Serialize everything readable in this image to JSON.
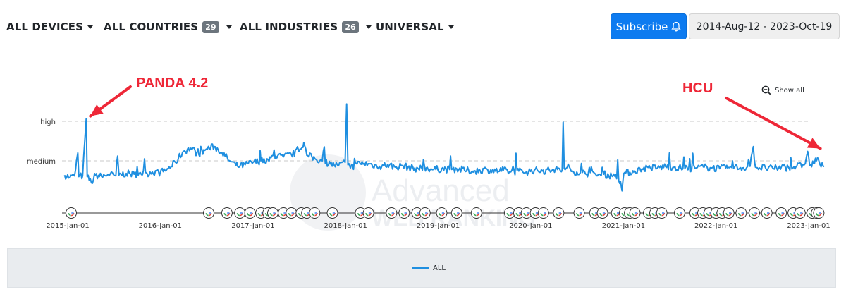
{
  "filters": [
    {
      "label": "ALL DEVICES",
      "badge": ""
    },
    {
      "label": "ALL COUNTRIES",
      "badge": "29"
    },
    {
      "label": "ALL INDUSTRIES",
      "badge": "26"
    },
    {
      "label": "UNIVERSAL",
      "badge": ""
    }
  ],
  "subscribe_label": "Subscribe",
  "date_range": "2014-Aug-12 - 2023-Oct-19",
  "show_all_label": "Show all",
  "watermark": [
    "Advanced",
    "WEB RANKING"
  ],
  "colors": {
    "series": "#1f8fe0",
    "annotation": "#ee2737",
    "subscribe_bg": "#0d7bf0"
  },
  "chart_data": {
    "type": "line",
    "title": "",
    "x_range": [
      "2014-Dec-15",
      "2023-Mar-01"
    ],
    "y_axis": {
      "tick_labels": [
        "high",
        "medium"
      ],
      "grid": "dashed"
    },
    "x_ticks": [
      "2015-Jan-01",
      "2016-Jan-01",
      "2017-Jan-01",
      "2018-Jan-01",
      "2019-Jan-01",
      "2020-Jan-01",
      "2021-Jan-01",
      "2022-Jan-01",
      "2023-Jan-01"
    ],
    "series": [
      {
        "name": "ALL",
        "color": "#1f8fe0",
        "points": [
          [
            "2014-Dec-20",
            0.32
          ],
          [
            "2015-Jan-10",
            0.29
          ],
          [
            "2015-Jan-28",
            0.31
          ],
          [
            "2015-Feb-10",
            0.6
          ],
          [
            "2015-Feb-14",
            0.3
          ],
          [
            "2015-Mar-01",
            0.31
          ],
          [
            "2015-Mar-15",
            1.03
          ],
          [
            "2015-Mar-19",
            0.3
          ],
          [
            "2015-Apr-05",
            0.22
          ],
          [
            "2015-Apr-20",
            0.32
          ],
          [
            "2015-May-15",
            0.3
          ],
          [
            "2015-Jun-10",
            0.33
          ],
          [
            "2015-Jul-10",
            0.31
          ],
          [
            "2015-Jul-17",
            0.56
          ],
          [
            "2015-Jul-22",
            0.32
          ],
          [
            "2015-Aug-20",
            0.34
          ],
          [
            "2015-Sep-20",
            0.33
          ],
          [
            "2015-Oct-15",
            0.35
          ],
          [
            "2015-Nov-10",
            0.34
          ],
          [
            "2015-Dec-01",
            0.36
          ],
          [
            "2016-Jan-01",
            0.35
          ],
          [
            "2016-Feb-01",
            0.4
          ],
          [
            "2016-Mar-01",
            0.48
          ],
          [
            "2016-Apr-01",
            0.62
          ],
          [
            "2016-May-01",
            0.66
          ],
          [
            "2016-Jun-01",
            0.58
          ],
          [
            "2016-Jul-01",
            0.65
          ],
          [
            "2016-Aug-01",
            0.68
          ],
          [
            "2016-Sep-01",
            0.6
          ],
          [
            "2016-Oct-01",
            0.5
          ],
          [
            "2016-Nov-01",
            0.43
          ],
          [
            "2016-Dec-01",
            0.45
          ],
          [
            "2017-Jan-01",
            0.48
          ],
          [
            "2017-Feb-01",
            0.5
          ],
          [
            "2017-Mar-01",
            0.52
          ],
          [
            "2017-Apr-01",
            0.56
          ],
          [
            "2017-May-01",
            0.55
          ],
          [
            "2017-Jun-01",
            0.58
          ],
          [
            "2017-Jul-01",
            0.62
          ],
          [
            "2017-Jul-20",
            0.73
          ],
          [
            "2017-Aug-01",
            0.57
          ],
          [
            "2017-Sep-01",
            0.53
          ],
          [
            "2017-Oct-01",
            0.5
          ],
          [
            "2017-Nov-01",
            0.46
          ],
          [
            "2017-Dec-01",
            0.44
          ],
          [
            "2017-Dec-30",
            0.48
          ],
          [
            "2018-Jan-05",
            1.22
          ],
          [
            "2018-Jan-10",
            0.45
          ],
          [
            "2018-Jan-20",
            0.41
          ],
          [
            "2018-Feb-15",
            0.46
          ],
          [
            "2018-Mar-15",
            0.47
          ],
          [
            "2018-Apr-15",
            0.45
          ],
          [
            "2018-May-15",
            0.43
          ],
          [
            "2018-Jun-15",
            0.45
          ],
          [
            "2018-Jul-15",
            0.42
          ],
          [
            "2018-Aug-15",
            0.44
          ],
          [
            "2018-Sep-15",
            0.41
          ],
          [
            "2018-Oct-15",
            0.4
          ],
          [
            "2018-Nov-15",
            0.41
          ],
          [
            "2018-Dec-15",
            0.39
          ],
          [
            "2019-Jan-15",
            0.4
          ],
          [
            "2019-Feb-15",
            0.39
          ],
          [
            "2019-Mar-15",
            0.4
          ],
          [
            "2019-Apr-15",
            0.38
          ],
          [
            "2019-May-15",
            0.37
          ],
          [
            "2019-Jun-15",
            0.38
          ],
          [
            "2019-Jul-15",
            0.39
          ],
          [
            "2019-Aug-15",
            0.37
          ],
          [
            "2019-Sep-15",
            0.38
          ],
          [
            "2019-Oct-15",
            0.36
          ],
          [
            "2019-Nov-15",
            0.37
          ],
          [
            "2019-Dec-15",
            0.36
          ],
          [
            "2020-Jan-15",
            0.38
          ],
          [
            "2020-Feb-15",
            0.37
          ],
          [
            "2020-Mar-15",
            0.38
          ],
          [
            "2020-Apr-15",
            0.39
          ],
          [
            "2020-May-04",
            0.38
          ],
          [
            "2020-May-08",
            0.99
          ],
          [
            "2020-May-12",
            0.4
          ],
          [
            "2020-Jun-15",
            0.37
          ],
          [
            "2020-Jul-15",
            0.35
          ],
          [
            "2020-Aug-15",
            0.34
          ],
          [
            "2020-Sep-15",
            0.32
          ],
          [
            "2020-Oct-15",
            0.33
          ],
          [
            "2020-Nov-15",
            0.31
          ],
          [
            "2020-Dec-01",
            0.33
          ],
          [
            "2020-Dec-20",
            0.24
          ],
          [
            "2020-Dec-26",
            0.12
          ],
          [
            "2021-Jan-02",
            0.34
          ],
          [
            "2021-Feb-15",
            0.37
          ],
          [
            "2021-Mar-15",
            0.4
          ],
          [
            "2021-Apr-15",
            0.42
          ],
          [
            "2021-May-15",
            0.41
          ],
          [
            "2021-Jun-15",
            0.43
          ],
          [
            "2021-Jul-15",
            0.42
          ],
          [
            "2021-Aug-15",
            0.41
          ],
          [
            "2021-Sep-15",
            0.4
          ],
          [
            "2021-Oct-15",
            0.41
          ],
          [
            "2021-Nov-15",
            0.42
          ],
          [
            "2021-Dec-15",
            0.41
          ],
          [
            "2022-Jan-15",
            0.4
          ],
          [
            "2022-Feb-15",
            0.41
          ],
          [
            "2022-Mar-15",
            0.42
          ],
          [
            "2022-Apr-15",
            0.41
          ],
          [
            "2022-May-15",
            0.43
          ],
          [
            "2022-May-28",
            0.68
          ],
          [
            "2022-Jun-05",
            0.42
          ],
          [
            "2022-Jul-15",
            0.41
          ],
          [
            "2022-Aug-15",
            0.4
          ],
          [
            "2022-Sep-15",
            0.42
          ],
          [
            "2022-Oct-15",
            0.41
          ],
          [
            "2022-Nov-15",
            0.43
          ],
          [
            "2022-Dec-15",
            0.45
          ],
          [
            "2022-Dec-28",
            0.62
          ],
          [
            "2023-Jan-05",
            0.44
          ],
          [
            "2023-Jan-20",
            0.47
          ],
          [
            "2023-Feb-05",
            0.54
          ],
          [
            "2023-Feb-15",
            0.45
          ],
          [
            "2023-Mar-01",
            0.42
          ]
        ]
      }
    ],
    "update_markers": [
      "2015-Jan-15",
      "2016-Jul-10",
      "2016-Sep-20",
      "2016-Nov-10",
      "2016-Dec-20",
      "2017-Feb-01",
      "2017-Mar-01",
      "2017-Mar-20",
      "2017-May-01",
      "2017-Jun-01",
      "2017-Jul-10",
      "2017-Aug-01",
      "2017-Sep-01",
      "2017-Nov-10",
      "2018-Mar-01",
      "2018-Apr-01",
      "2018-Jul-01",
      "2018-Aug-20",
      "2018-Oct-10",
      "2018-Nov-10",
      "2019-Jan-15",
      "2019-Mar-15",
      "2019-Jun-01",
      "2019-Oct-10",
      "2019-Nov-15",
      "2019-Dec-15",
      "2020-Jan-20",
      "2020-Feb-20",
      "2020-Apr-20",
      "2020-Jul-10",
      "2020-Sep-10",
      "2020-Oct-10",
      "2020-Dec-05",
      "2021-Jan-05",
      "2021-Jan-25",
      "2021-Feb-15",
      "2021-Apr-10",
      "2021-May-05",
      "2021-Jun-01",
      "2021-Aug-10",
      "2021-Oct-10",
      "2021-Nov-10",
      "2021-Dec-05",
      "2022-Jan-01",
      "2022-Jan-25",
      "2022-Feb-20",
      "2022-Apr-10",
      "2022-Jun-01",
      "2022-Jul-20",
      "2022-Sep-15",
      "2022-Nov-01",
      "2022-Nov-28",
      "2023-Jan-15",
      "2023-Feb-01",
      "2023-Feb-10"
    ],
    "annotations": [
      {
        "text": "PANDA 4.2",
        "target_date": "2015-Mar-15"
      },
      {
        "text": "HCU",
        "target_date": "2023-Feb-05"
      }
    ],
    "legend": {
      "entries": [
        "ALL"
      ],
      "position": "bottom"
    },
    "grid": true
  }
}
